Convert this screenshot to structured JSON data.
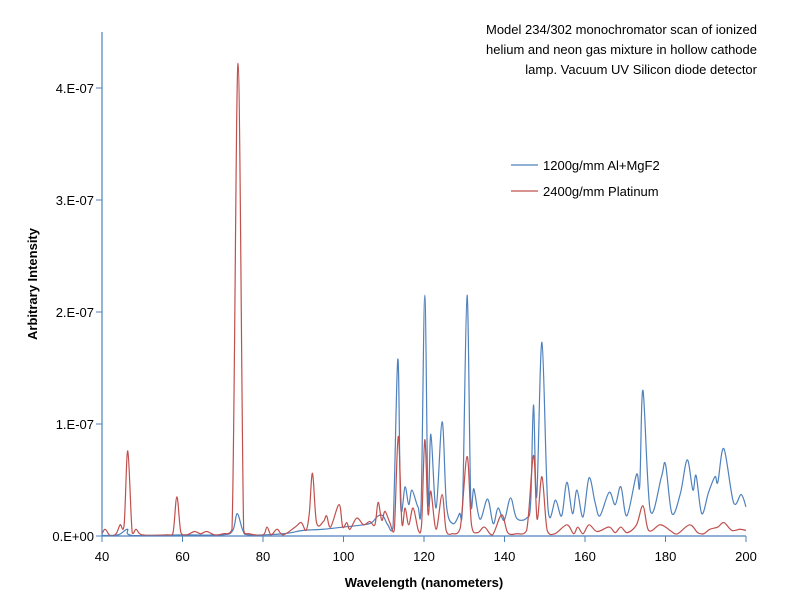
{
  "chart_data": {
    "type": "line",
    "title": "",
    "annotation": [
      "Model 234/302 monochromator scan of ionized",
      "helium and neon gas mixture in hollow cathode",
      "lamp. Vacuum UV Silicon diode detector"
    ],
    "xlabel": "Wavelength (nanometers)",
    "ylabel": "Arbitrary Intensity",
    "xlim": [
      40,
      200
    ],
    "ylim": [
      0,
      4.5e-07
    ],
    "xticks": [
      40,
      60,
      80,
      100,
      120,
      140,
      160,
      180,
      200
    ],
    "xtick_labels": [
      "40",
      "60",
      "80",
      "100",
      "120",
      "140",
      "160",
      "180",
      "200"
    ],
    "yticks": [
      0,
      1e-07,
      2e-07,
      3e-07,
      4e-07
    ],
    "ytick_labels": [
      "0.E+00",
      "1.E-07",
      "2.E-07",
      "3.E-07",
      "4.E-07"
    ],
    "grid": false,
    "legend_position": "top-right",
    "series": [
      {
        "name": "1200g/mm Al+MgF2",
        "color": "#4f81bd",
        "points": [
          [
            40,
            5e-10
          ],
          [
            44,
            1e-09
          ],
          [
            46.3,
            6e-09
          ],
          [
            47.5,
            5e-10
          ],
          [
            60,
            1e-09
          ],
          [
            70,
            1e-09
          ],
          [
            72.5,
            5e-09
          ],
          [
            73.6,
            2e-08
          ],
          [
            75,
            5e-09
          ],
          [
            76.5,
            1e-09
          ],
          [
            85,
            2e-09
          ],
          [
            90,
            5e-09
          ],
          [
            95,
            6e-09
          ],
          [
            100,
            8e-09
          ],
          [
            105,
            1e-08
          ],
          [
            107,
            1.2e-08
          ],
          [
            108.6,
            1.8e-08
          ],
          [
            109.8,
            1.8e-08
          ],
          [
            111,
            1e-08
          ],
          [
            112.3,
            8e-09
          ],
          [
            113.5,
            1.58e-07
          ],
          [
            114.2,
            2.7e-08
          ],
          [
            115.3,
            4.4e-08
          ],
          [
            116.2,
            2.8e-08
          ],
          [
            117,
            4.1e-08
          ],
          [
            118.5,
            2.6e-08
          ],
          [
            119.3,
            3e-08
          ],
          [
            120.2,
            2.15e-07
          ],
          [
            121,
            3e-08
          ],
          [
            121.7,
            9.1e-08
          ],
          [
            123,
            2.5e-08
          ],
          [
            124.5,
            1.02e-07
          ],
          [
            125.6,
            2.7e-08
          ],
          [
            127.2,
            1.1e-08
          ],
          [
            128.8,
            2e-08
          ],
          [
            129.6,
            3e-08
          ],
          [
            130.7,
            2.15e-07
          ],
          [
            131.6,
            3.5e-08
          ],
          [
            132.4,
            4.2e-08
          ],
          [
            133.9,
            1.5e-08
          ],
          [
            135.8,
            3.3e-08
          ],
          [
            137.2,
            1.1e-08
          ],
          [
            138.4,
            2.5e-08
          ],
          [
            139.9,
            1.4e-08
          ],
          [
            141.5,
            3.4e-08
          ],
          [
            143,
            1.6e-08
          ],
          [
            145.5,
            1.6e-08
          ],
          [
            146.5,
            3e-08
          ],
          [
            147.2,
            1.17e-07
          ],
          [
            148,
            3.5e-08
          ],
          [
            149.3,
            1.73e-07
          ],
          [
            150.8,
            2.5e-08
          ],
          [
            152.7,
            3.2e-08
          ],
          [
            154.2,
            1.8e-08
          ],
          [
            155.5,
            4.8e-08
          ],
          [
            156.9,
            2e-08
          ],
          [
            158,
            4.1e-08
          ],
          [
            159.5,
            1.7e-08
          ],
          [
            161,
            5.2e-08
          ],
          [
            162.5,
            3e-08
          ],
          [
            163.7,
            1.8e-08
          ],
          [
            166,
            3.9e-08
          ],
          [
            167.5,
            2.8e-08
          ],
          [
            168.9,
            4.4e-08
          ],
          [
            170.4,
            1.8e-08
          ],
          [
            172.8,
            5.5e-08
          ],
          [
            173.6,
            4.5e-08
          ],
          [
            174.4,
            1.3e-07
          ],
          [
            176.2,
            2.3e-08
          ],
          [
            179,
            5.3e-08
          ],
          [
            180,
            6.4e-08
          ],
          [
            181.6,
            2e-08
          ],
          [
            183.7,
            3.8e-08
          ],
          [
            185.4,
            6.8e-08
          ],
          [
            186.8,
            4.1e-08
          ],
          [
            187.6,
            5.4e-08
          ],
          [
            189,
            2e-08
          ],
          [
            190.7,
            3.9e-08
          ],
          [
            192.3,
            5.3e-08
          ],
          [
            193,
            4.8e-08
          ],
          [
            194.5,
            7.8e-08
          ],
          [
            196.9,
            3e-08
          ],
          [
            198.8,
            3.7e-08
          ],
          [
            200,
            2.6e-08
          ]
        ]
      },
      {
        "name": "2400g/mm Platinum",
        "color": "#c0504d",
        "points": [
          [
            40,
            2e-09
          ],
          [
            40.8,
            6e-09
          ],
          [
            42,
            5e-10
          ],
          [
            43.5,
            2e-09
          ],
          [
            44.5,
            1e-08
          ],
          [
            45.5,
            1e-08
          ],
          [
            46.4,
            7.6e-08
          ],
          [
            47.5,
            3e-09
          ],
          [
            48.5,
            6e-09
          ],
          [
            50,
            1e-09
          ],
          [
            56,
            1e-09
          ],
          [
            57.6,
            2e-09
          ],
          [
            58.6,
            3.5e-08
          ],
          [
            59.6,
            3e-09
          ],
          [
            61,
            1e-09
          ],
          [
            63,
            4e-09
          ],
          [
            64.5,
            2e-09
          ],
          [
            66,
            4e-09
          ],
          [
            68,
            1e-09
          ],
          [
            70,
            2e-09
          ],
          [
            72.3,
            6e-09
          ],
          [
            73.8,
            4.22e-07
          ],
          [
            75.2,
            5e-09
          ],
          [
            76.5,
            2e-09
          ],
          [
            80,
            1e-09
          ],
          [
            81,
            8e-09
          ],
          [
            82,
            1e-09
          ],
          [
            83.5,
            6e-09
          ],
          [
            85,
            1e-09
          ],
          [
            88,
            8e-09
          ],
          [
            89.5,
            1.2e-08
          ],
          [
            90.7,
            5e-09
          ],
          [
            91.5,
            2e-08
          ],
          [
            92.3,
            5.6e-08
          ],
          [
            93.3,
            1.2e-08
          ],
          [
            95,
            1.3e-08
          ],
          [
            95.8,
            1.8e-08
          ],
          [
            96.8,
            8e-09
          ],
          [
            98.9,
            2.8e-08
          ],
          [
            99.8,
            8e-09
          ],
          [
            100.8,
            1.2e-08
          ],
          [
            101.6,
            6e-09
          ],
          [
            103.3,
            1.6e-08
          ],
          [
            105,
            1e-08
          ],
          [
            106.5,
            1.3e-08
          ],
          [
            107.8,
            1e-08
          ],
          [
            108.6,
            3e-08
          ],
          [
            109.5,
            1.4e-08
          ],
          [
            110.3,
            2.2e-08
          ],
          [
            111.5,
            1.2e-08
          ],
          [
            112.6,
            5e-09
          ],
          [
            113.6,
            8.9e-08
          ],
          [
            114.5,
            1.2e-08
          ],
          [
            115.3,
            2.5e-08
          ],
          [
            116.2,
            1e-08
          ],
          [
            117.3,
            2.5e-08
          ],
          [
            118.6,
            5e-09
          ],
          [
            119.4,
            1e-08
          ],
          [
            120.2,
            8.6e-08
          ],
          [
            121,
            2e-08
          ],
          [
            121.7,
            4e-08
          ],
          [
            123,
            6e-09
          ],
          [
            124.5,
            3.7e-08
          ],
          [
            125.5,
            5e-09
          ],
          [
            127,
            2e-09
          ],
          [
            129,
            7e-09
          ],
          [
            130.7,
            7.1e-08
          ],
          [
            131.8,
            1e-08
          ],
          [
            133.3,
            3e-09
          ],
          [
            135,
            8e-09
          ],
          [
            137,
            1e-09
          ],
          [
            139.3,
            1.9e-08
          ],
          [
            140.8,
            3e-09
          ],
          [
            143,
            2e-09
          ],
          [
            145.5,
            5e-09
          ],
          [
            147.2,
            7.2e-08
          ],
          [
            148.1,
            1.5e-08
          ],
          [
            149.3,
            5.3e-08
          ],
          [
            150.6,
            5e-09
          ],
          [
            152.5,
            2e-09
          ],
          [
            155.5,
            1e-08
          ],
          [
            157.2,
            2e-09
          ],
          [
            158.2,
            8e-09
          ],
          [
            159.5,
            2e-09
          ],
          [
            161,
            1e-08
          ],
          [
            163,
            4e-09
          ],
          [
            166,
            8e-09
          ],
          [
            167.5,
            3e-09
          ],
          [
            168.9,
            8e-09
          ],
          [
            170.5,
            3e-09
          ],
          [
            172.8,
            1e-08
          ],
          [
            174.4,
            2.7e-08
          ],
          [
            175.8,
            5e-09
          ],
          [
            178.5,
            1e-08
          ],
          [
            180,
            8e-09
          ],
          [
            181.5,
            4e-09
          ],
          [
            183,
            2e-09
          ],
          [
            186,
            1e-08
          ],
          [
            188,
            3e-09
          ],
          [
            189.5,
            2e-09
          ],
          [
            191,
            6e-09
          ],
          [
            193,
            8e-09
          ],
          [
            194.5,
            1.2e-08
          ],
          [
            196.5,
            5e-09
          ],
          [
            198.5,
            6e-09
          ],
          [
            200,
            5e-09
          ]
        ]
      }
    ]
  }
}
